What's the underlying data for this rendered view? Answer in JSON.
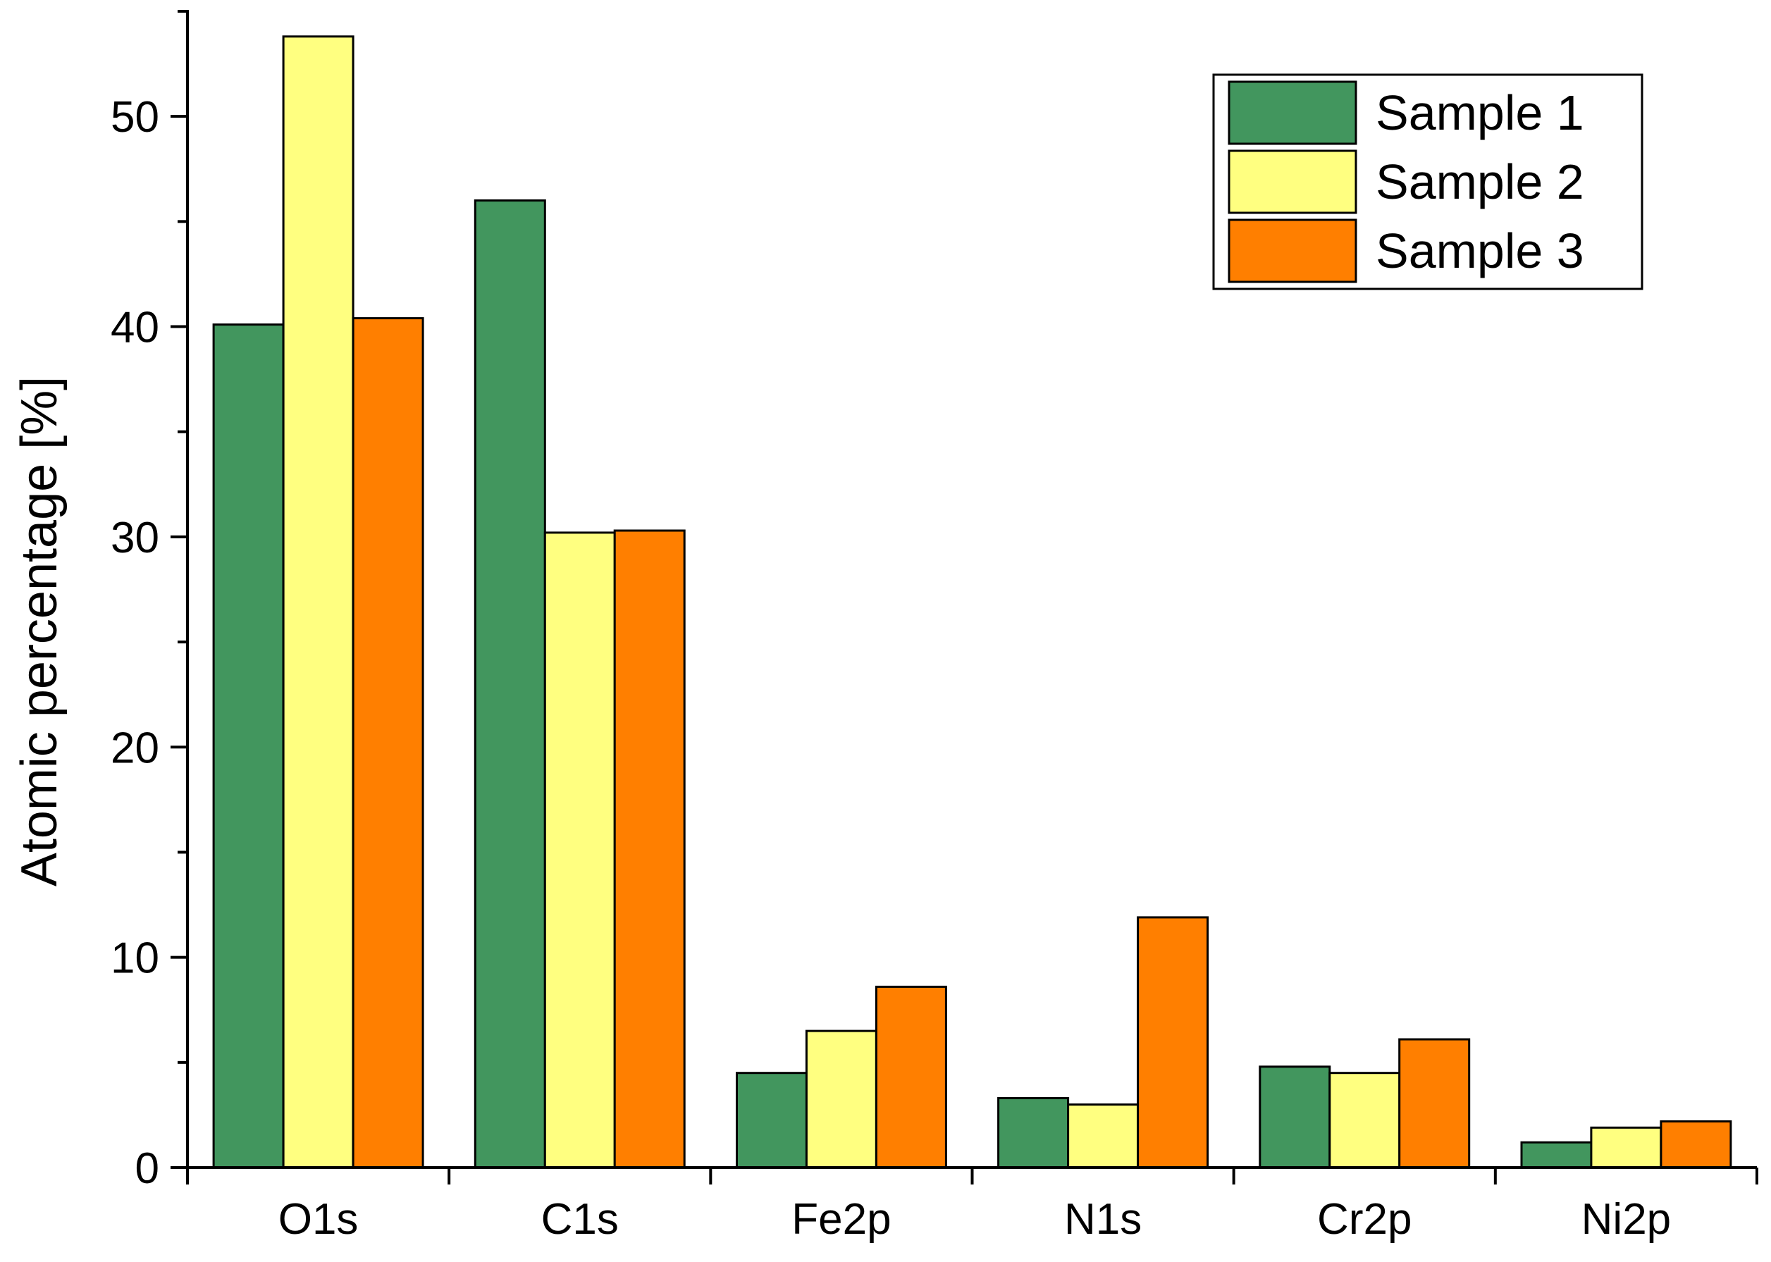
{
  "chart_data": {
    "type": "bar",
    "title": "",
    "xlabel": "",
    "ylabel": "Atomic percentage [%]",
    "ylim": [
      0,
      55
    ],
    "yticks": [
      0,
      10,
      20,
      30,
      40,
      50
    ],
    "yminor_step": 5,
    "categories": [
      "O1s",
      "C1s",
      "Fe2p",
      "N1s",
      "Cr2p",
      "Ni2p"
    ],
    "series": [
      {
        "name": "Sample 1",
        "color": "#42965E",
        "values": [
          40.1,
          46.0,
          4.5,
          3.3,
          4.8,
          1.2
        ]
      },
      {
        "name": "Sample 2",
        "color": "#FFFF80",
        "values": [
          53.8,
          30.2,
          6.5,
          3.0,
          4.5,
          1.9
        ]
      },
      {
        "name": "Sample 3",
        "color": "#FF7F00",
        "values": [
          40.4,
          30.3,
          8.6,
          11.9,
          6.1,
          2.2
        ]
      }
    ],
    "legend": {
      "position": "top-right"
    },
    "grid": false
  }
}
